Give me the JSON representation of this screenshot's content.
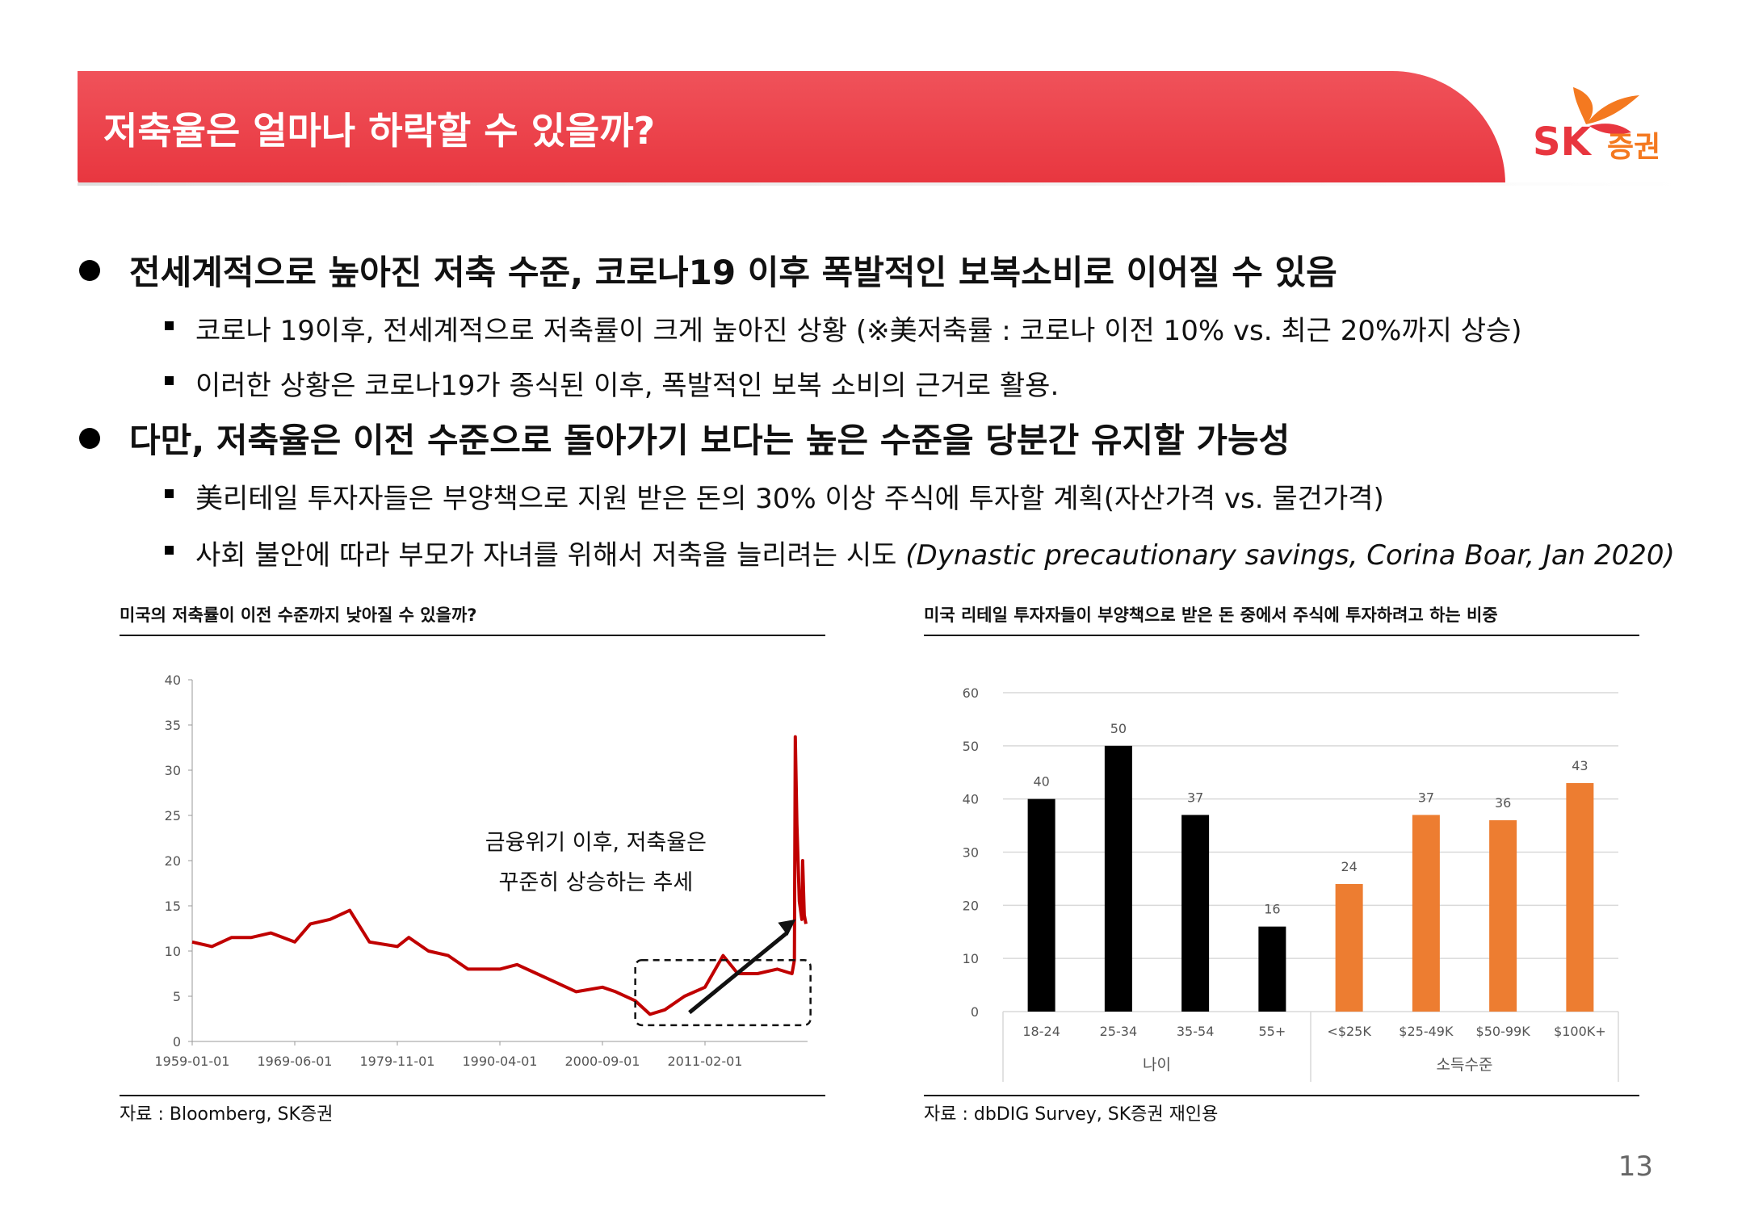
{
  "header": {
    "title": "저축율은 얼마나 하락할 수 있을까?"
  },
  "logo": {
    "sk": "SK",
    "name": "증권"
  },
  "bullets": [
    {
      "text": "전세계적으로 높아진 저축 수준, 코로나19 이후 폭발적인 보복소비로 이어질 수 있음",
      "subs": [
        "코로나 19이후, 전세계적으로 저축률이 크게 높아진 상황 (※美저축률 : 코로나 이전 10% vs. 최근 20%까지 상승)",
        "이러한 상황은 코로나19가 종식된 이후, 폭발적인 보복 소비의 근거로 활용."
      ]
    },
    {
      "text": "다만, 저축율은 이전 수준으로 돌아가기 보다는 높은 수준을 당분간 유지할 가능성",
      "subs": [
        "美리테일 투자자들은 부양책으로 지원 받은 돈의 30% 이상 주식에 투자할 계획(자산가격 vs. 물건가격)",
        "사회 불안에 따라 부모가 자녀를 위해서 저축을 늘리려는 시도"
      ],
      "sub2_italic": "(Dynastic precautionary savings, Corina Boar, Jan 2020)"
    }
  ],
  "page_number": "13",
  "colors": {
    "header_red": "#e8363f",
    "line_red": "#c00000",
    "bar_black": "#000000",
    "bar_orange": "#ed7d31"
  },
  "chart_data": [
    {
      "type": "line",
      "title": "미국의 저축률이 이전 수준까지 낮아질 수 있을까?",
      "source": "자료 : Bloomberg, SK증권",
      "x_ticks": [
        "1959-01-01",
        "1969-06-01",
        "1979-11-01",
        "1990-04-01",
        "2000-09-01",
        "2011-02-01"
      ],
      "ylim": [
        0,
        40
      ],
      "y_ticks": [
        0,
        5,
        10,
        15,
        20,
        25,
        30,
        35,
        40
      ],
      "grid": false,
      "annotation": [
        "금융위기 이후, 저축율은",
        "꾸준히 상승하는 추세"
      ],
      "series": [
        {
          "x": [
            "1959-01",
            "1961-01",
            "1963-01",
            "1965-01",
            "1967-01",
            "1969-06",
            "1971-01",
            "1973-01",
            "1975-01",
            "1977-01",
            "1979-11",
            "1981-01",
            "1983-01",
            "1985-01",
            "1987-01",
            "1990-04",
            "1992-01",
            "1994-01",
            "1996-01",
            "1998-01",
            "2000-09",
            "2002-01",
            "2004-01",
            "2005-07",
            "2007-01",
            "2009-01",
            "2011-02",
            "2012-12",
            "2014-06",
            "2016-06",
            "2018-06",
            "2019-12",
            "2020-03",
            "2020-04",
            "2020-06",
            "2020-09",
            "2020-12",
            "2021-01",
            "2021-03",
            "2021-05"
          ],
          "values": [
            11,
            10.5,
            11.5,
            11.5,
            12,
            11,
            13,
            13.5,
            14.5,
            11,
            10.5,
            11.5,
            10,
            9.5,
            8,
            8,
            8.5,
            7.5,
            6.5,
            5.5,
            6,
            5.5,
            4.5,
            3,
            3.5,
            5,
            6,
            9.5,
            7.5,
            7.5,
            8,
            7.5,
            9,
            33.7,
            24,
            15.5,
            13.5,
            20,
            14,
            13
          ]
        }
      ]
    },
    {
      "type": "bar",
      "title": "미국 리테일 투자자들이 부양책으로 받은 돈 중에서 주식에 투자하려고 하는 비중",
      "source": "자료 : dbDIG Survey, SK증권 재인용",
      "categories": [
        "18-24",
        "25-34",
        "35-54",
        "55+",
        "<$25K",
        "$25-49K",
        "$50-99K",
        "$100K+"
      ],
      "groups": [
        {
          "label": "나이",
          "count": 4,
          "color": "#000000"
        },
        {
          "label": "소득수준",
          "count": 4,
          "color": "#ed7d31"
        }
      ],
      "values": [
        40,
        50,
        37,
        16,
        24,
        37,
        36,
        43
      ],
      "ylim": [
        0,
        60
      ],
      "y_ticks": [
        0,
        10,
        20,
        30,
        40,
        50,
        60
      ],
      "grid": true
    }
  ]
}
